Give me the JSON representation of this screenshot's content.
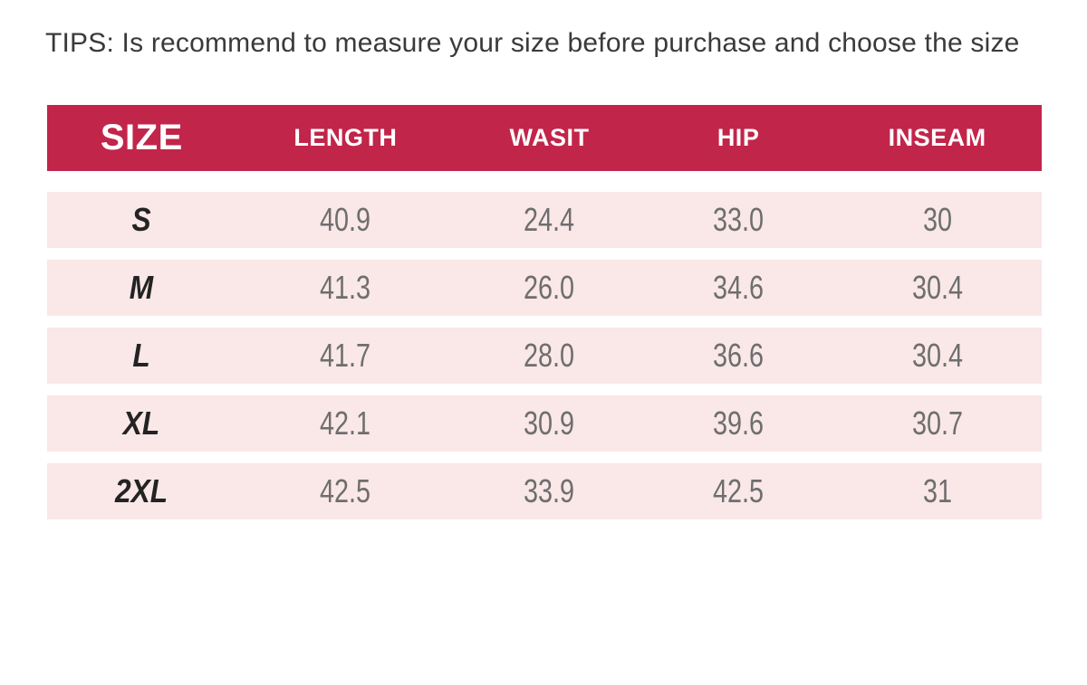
{
  "chart_data": {
    "type": "table",
    "title": "TIPS: Is recommend to measure your size before purchase and choose the size",
    "columns": [
      "SIZE",
      "LENGTH",
      "WASIT",
      "HIP",
      "INSEAM"
    ],
    "rows": [
      [
        "S",
        "40.9",
        "24.4",
        "33.0",
        "30"
      ],
      [
        "M",
        "41.3",
        "26.0",
        "34.6",
        "30.4"
      ],
      [
        "L",
        "41.7",
        "28.0",
        "36.6",
        "30.4"
      ],
      [
        "XL",
        "42.1",
        "30.9",
        "39.6",
        "30.7"
      ],
      [
        "2XL",
        "42.5",
        "33.9",
        "42.5",
        "31"
      ]
    ],
    "layout": {
      "legend": "none",
      "grid": "off",
      "row_style": "striped-with-gaps"
    }
  },
  "colors": {
    "header_bg": "#c2254a",
    "header_text": "#ffffff",
    "row_bg": "#fae7e7",
    "number_text": "#6e6e6e",
    "size_label_text": "#232323",
    "tip_text": "#3a3a3a",
    "page_bg": "#ffffff"
  }
}
